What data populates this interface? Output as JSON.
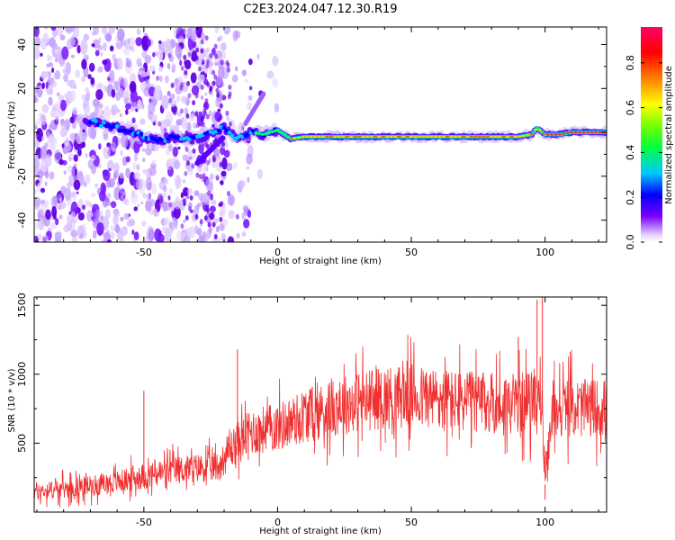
{
  "figure": {
    "title": "C2E3.2024.047.12.30.R19"
  },
  "chart_data": [
    {
      "type": "heatmap",
      "title": "",
      "xlabel": "Height of straight line (km)",
      "ylabel": "Frequency (Hz)",
      "xlim": [
        -91,
        123
      ],
      "ylim": [
        -50,
        48
      ],
      "xticks": [
        -50,
        0,
        50,
        100
      ],
      "yticks": [
        -40,
        -20,
        0,
        20,
        40
      ],
      "ridge": {
        "x": [
          -70,
          -60,
          -50,
          -45,
          -40,
          -30,
          -25,
          -20,
          -15,
          -10,
          -5,
          0,
          5,
          10,
          20,
          40,
          60,
          80,
          90,
          95,
          97,
          100,
          105,
          110,
          115,
          120,
          123
        ],
        "y": [
          5,
          2,
          -2,
          -4,
          -2,
          -3,
          0,
          2,
          -3,
          0,
          -1,
          1,
          -3,
          -2,
          -2,
          -2,
          -2,
          -2,
          -2,
          -1,
          2,
          -1,
          -1,
          0,
          0,
          0,
          0
        ]
      },
      "colorbar": {
        "label": "Normalized spectral amplitude",
        "colormap": "rainbow",
        "ticks": [
          0.0,
          0.2,
          0.4,
          0.6,
          0.8
        ],
        "range": [
          0,
          0.96
        ]
      },
      "grid": false
    },
    {
      "type": "line",
      "title": "",
      "xlabel": "Height of straight line (km)",
      "ylabel": "SNR (10 * v/v)",
      "xlim": [
        -91,
        123
      ],
      "ylim": [
        0,
        1560
      ],
      "xticks": [
        -50,
        0,
        50,
        100
      ],
      "yticks": [
        500,
        1000,
        1500
      ],
      "series_color": "#f03030",
      "envelope": {
        "x": [
          -91,
          -80,
          -70,
          -60,
          -50,
          -40,
          -30,
          -22,
          -18,
          -15,
          -10,
          -5,
          0,
          5,
          10,
          15,
          20,
          30,
          40,
          50,
          60,
          70,
          80,
          90,
          95,
          97,
          99,
          100,
          101,
          103,
          105,
          110,
          115,
          123
        ],
        "y": [
          150,
          170,
          190,
          220,
          260,
          300,
          320,
          330,
          450,
          500,
          580,
          600,
          620,
          650,
          700,
          720,
          760,
          800,
          830,
          840,
          820,
          800,
          790,
          790,
          800,
          900,
          700,
          200,
          400,
          750,
          760,
          760,
          750,
          760
        ]
      },
      "spikes": [
        {
          "x": -15,
          "y": 1180
        },
        {
          "x": -50,
          "y": 880
        },
        {
          "x": 90,
          "y": 1270
        },
        {
          "x": 97,
          "y": 1540
        },
        {
          "x": 99,
          "y": 1560
        },
        {
          "x": 100,
          "y": 90
        }
      ],
      "grid": false
    }
  ]
}
